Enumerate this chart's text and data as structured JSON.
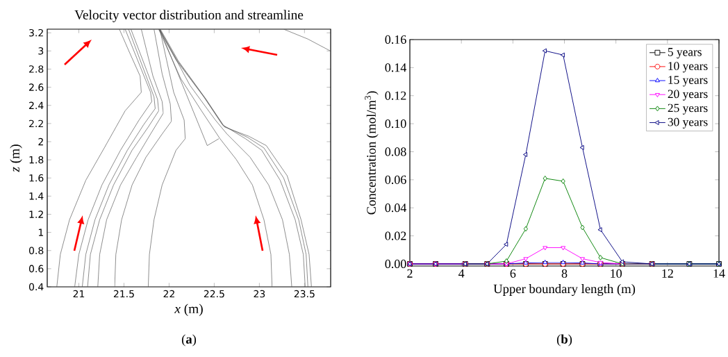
{
  "chart_data": [
    {
      "type": "line",
      "title": "Velocity vector distribution and streamline",
      "xlabel": "*x* (m)",
      "ylabel": "*z* (m)",
      "annotations": [
        "(**a**)"
      ],
      "xlim": [
        20.65,
        23.79
      ],
      "ylim": [
        0.4,
        3.24
      ],
      "xticks": [
        21,
        21.5,
        22,
        22.5,
        23,
        23.5
      ],
      "yticks": [
        0.4,
        0.6,
        0.8,
        1,
        1.2,
        1.4,
        1.6,
        1.8,
        2,
        2.2,
        2.4,
        2.6,
        2.8,
        3,
        3.2
      ],
      "series": [
        {
          "color": "#555555",
          "x": [
            20.756,
            20.795,
            20.897,
            21.077,
            21.282,
            21.513,
            21.692,
            21.679,
            21.564,
            21.449
          ],
          "values": [
            0.4,
            0.757,
            1.14,
            1.574,
            1.931,
            2.34,
            2.544,
            2.723,
            2.978,
            3.24
          ]
        },
        {
          "color": "#555555",
          "x": [
            20.954,
            21.0,
            21.103,
            21.256,
            21.462,
            21.667,
            21.808,
            21.795,
            21.513
          ],
          "values": [
            0.4,
            0.757,
            1.14,
            1.523,
            1.906,
            2.238,
            2.442,
            2.544,
            3.24
          ]
        },
        {
          "color": "#555555",
          "x": [
            21.038,
            21.077,
            21.179,
            21.333,
            21.538,
            21.718,
            21.846,
            21.833,
            21.551
          ],
          "values": [
            0.4,
            0.757,
            1.14,
            1.523,
            1.906,
            2.187,
            2.365,
            2.493,
            3.24
          ]
        },
        {
          "color": "#555555",
          "x": [
            21.097,
            21.128,
            21.231,
            21.385,
            21.59,
            21.769,
            21.885,
            21.872,
            21.756,
            21.577
          ],
          "values": [
            0.4,
            0.757,
            1.14,
            1.523,
            1.906,
            2.161,
            2.34,
            2.467,
            2.774,
            3.24
          ]
        },
        {
          "color": "#555555",
          "x": [
            21.21,
            21.231,
            21.308,
            21.462,
            21.641,
            21.795,
            21.936,
            21.923,
            21.821,
            21.692
          ],
          "values": [
            0.4,
            0.757,
            1.14,
            1.523,
            1.829,
            2.085,
            2.314,
            2.442,
            2.723,
            3.24
          ]
        },
        {
          "color": "#555555",
          "x": [
            21.397,
            21.41,
            21.474,
            21.59,
            21.744,
            21.923,
            22.026,
            22.013,
            21.923,
            21.833
          ],
          "values": [
            0.4,
            0.757,
            1.14,
            1.523,
            1.829,
            2.085,
            2.225,
            2.416,
            2.748,
            3.24
          ]
        },
        {
          "color": "#555555",
          "x": [
            21.769,
            21.782,
            21.833,
            21.923,
            22.077,
            22.179,
            22.167,
            22.051,
            21.897
          ],
          "values": [
            0.4,
            0.757,
            1.14,
            1.523,
            1.906,
            2.033,
            2.238,
            2.544,
            3.24
          ]
        },
        {
          "color": "#555555",
          "x": [
            23.141,
            23.128,
            23.051,
            22.923,
            22.744,
            22.564,
            22.359,
            22.128,
            21.885
          ],
          "values": [
            0.4,
            0.757,
            1.14,
            1.523,
            1.804,
            2.033,
            2.34,
            2.697,
            3.24
          ]
        },
        {
          "color": "#555555",
          "x": [
            21.897,
            22.423,
            22.551
          ],
          "values": [
            3.24,
            1.957,
            2.033
          ]
        },
        {
          "color": "#555555",
          "x": [
            23.359,
            23.333,
            23.256,
            23.103,
            22.897,
            22.641,
            22.513,
            22.231,
            21.897
          ],
          "values": [
            0.4,
            0.757,
            1.14,
            1.523,
            1.829,
            2.085,
            2.238,
            2.621,
            3.24
          ]
        },
        {
          "color": "#555555",
          "x": [
            23.508,
            23.487,
            23.397,
            23.231,
            23.026,
            22.846,
            22.59,
            22.385,
            22.077,
            21.885
          ],
          "values": [
            0.4,
            0.757,
            1.14,
            1.574,
            1.906,
            2.033,
            2.187,
            2.493,
            2.901,
            3.24
          ]
        },
        {
          "color": "#555555",
          "x": [
            23.538,
            23.518,
            23.436,
            23.269,
            23.051,
            22.872,
            22.603,
            22.397,
            22.09,
            21.892
          ],
          "values": [
            0.4,
            0.757,
            1.14,
            1.6,
            1.931,
            2.046,
            2.174,
            2.48,
            2.896,
            3.24
          ]
        },
        {
          "color": "#555555",
          "x": [
            23.577,
            23.551,
            23.462,
            23.308,
            23.077,
            22.885,
            22.615,
            22.41,
            22.103,
            21.903
          ],
          "values": [
            0.4,
            0.757,
            1.14,
            1.625,
            1.957,
            2.059,
            2.161,
            2.467,
            2.889,
            3.24
          ]
        },
        {
          "color": "#555555",
          "x": [
            23.269,
            23.538,
            23.79
          ],
          "values": [
            3.24,
            3.131,
            2.998
          ]
        }
      ]
    },
    {
      "type": "line",
      "xlabel": "Upper boundary length (m)",
      "ylabel": "Concentration (mol/m$^{3}$)",
      "annotations": [
        "(**b**)"
      ],
      "xlim": [
        2,
        14
      ],
      "ylim": [
        -0.0015,
        0.16
      ],
      "xticks": [
        2,
        4,
        6,
        8,
        10,
        12,
        14
      ],
      "yticks": [
        {
          "value": 0,
          "label": "0.00"
        },
        {
          "value": 0.02,
          "label": "0.02"
        },
        {
          "value": 0.04,
          "label": "0.04"
        },
        {
          "value": 0.06,
          "label": "0.06"
        },
        {
          "value": 0.08,
          "label": "0.08"
        },
        {
          "value": 0.1,
          "label": "0.10"
        },
        {
          "value": 0.12,
          "label": "0.12"
        },
        {
          "value": 0.14,
          "label": "0.14"
        },
        {
          "value": 0.16,
          "label": "0.16"
        }
      ],
      "legend": "top right",
      "x": [
        2,
        3,
        4.15,
        5,
        5.75,
        6.5,
        7.25,
        7.95,
        8.7,
        9.4,
        10.25,
        11.4,
        12.85,
        14
      ],
      "series": [
        {
          "name": "5 years",
          "color": "#000000",
          "marker": "square",
          "values": [
            0,
            0,
            0,
            0,
            0,
            0,
            0,
            0,
            0,
            0,
            0,
            0,
            0,
            0
          ]
        },
        {
          "name": "10 years",
          "color": "#ff0000",
          "marker": "circle",
          "values": [
            0,
            0,
            0,
            0,
            0,
            0,
            0,
            0,
            0,
            0,
            0,
            0,
            null,
            null
          ]
        },
        {
          "name": "15 years",
          "color": "#0000ff",
          "marker": "triangle",
          "values": [
            0,
            0,
            0,
            0,
            0,
            0.0007,
            0.001,
            0.001,
            0.0007,
            0,
            0,
            0,
            0,
            0
          ]
        },
        {
          "name": "20 years",
          "color": "#ff00ff",
          "marker": "triangle-down",
          "values": [
            0,
            0,
            0,
            0,
            0,
            0.0037,
            0.0116,
            0.0116,
            0.0037,
            0.001,
            0,
            0,
            null,
            null
          ]
        },
        {
          "name": "25 years",
          "color": "#008000",
          "marker": "diamond",
          "values": [
            null,
            null,
            0,
            0,
            0.002,
            0.025,
            0.061,
            0.059,
            0.026,
            0.0045,
            0,
            0,
            0,
            0
          ]
        },
        {
          "name": "30 years",
          "color": "#000080",
          "marker": "triangle-left",
          "values": [
            0,
            0,
            0,
            0,
            0.014,
            0.078,
            0.152,
            0.149,
            0.083,
            0.0244,
            0.0015,
            0,
            0,
            0
          ]
        }
      ]
    }
  ]
}
